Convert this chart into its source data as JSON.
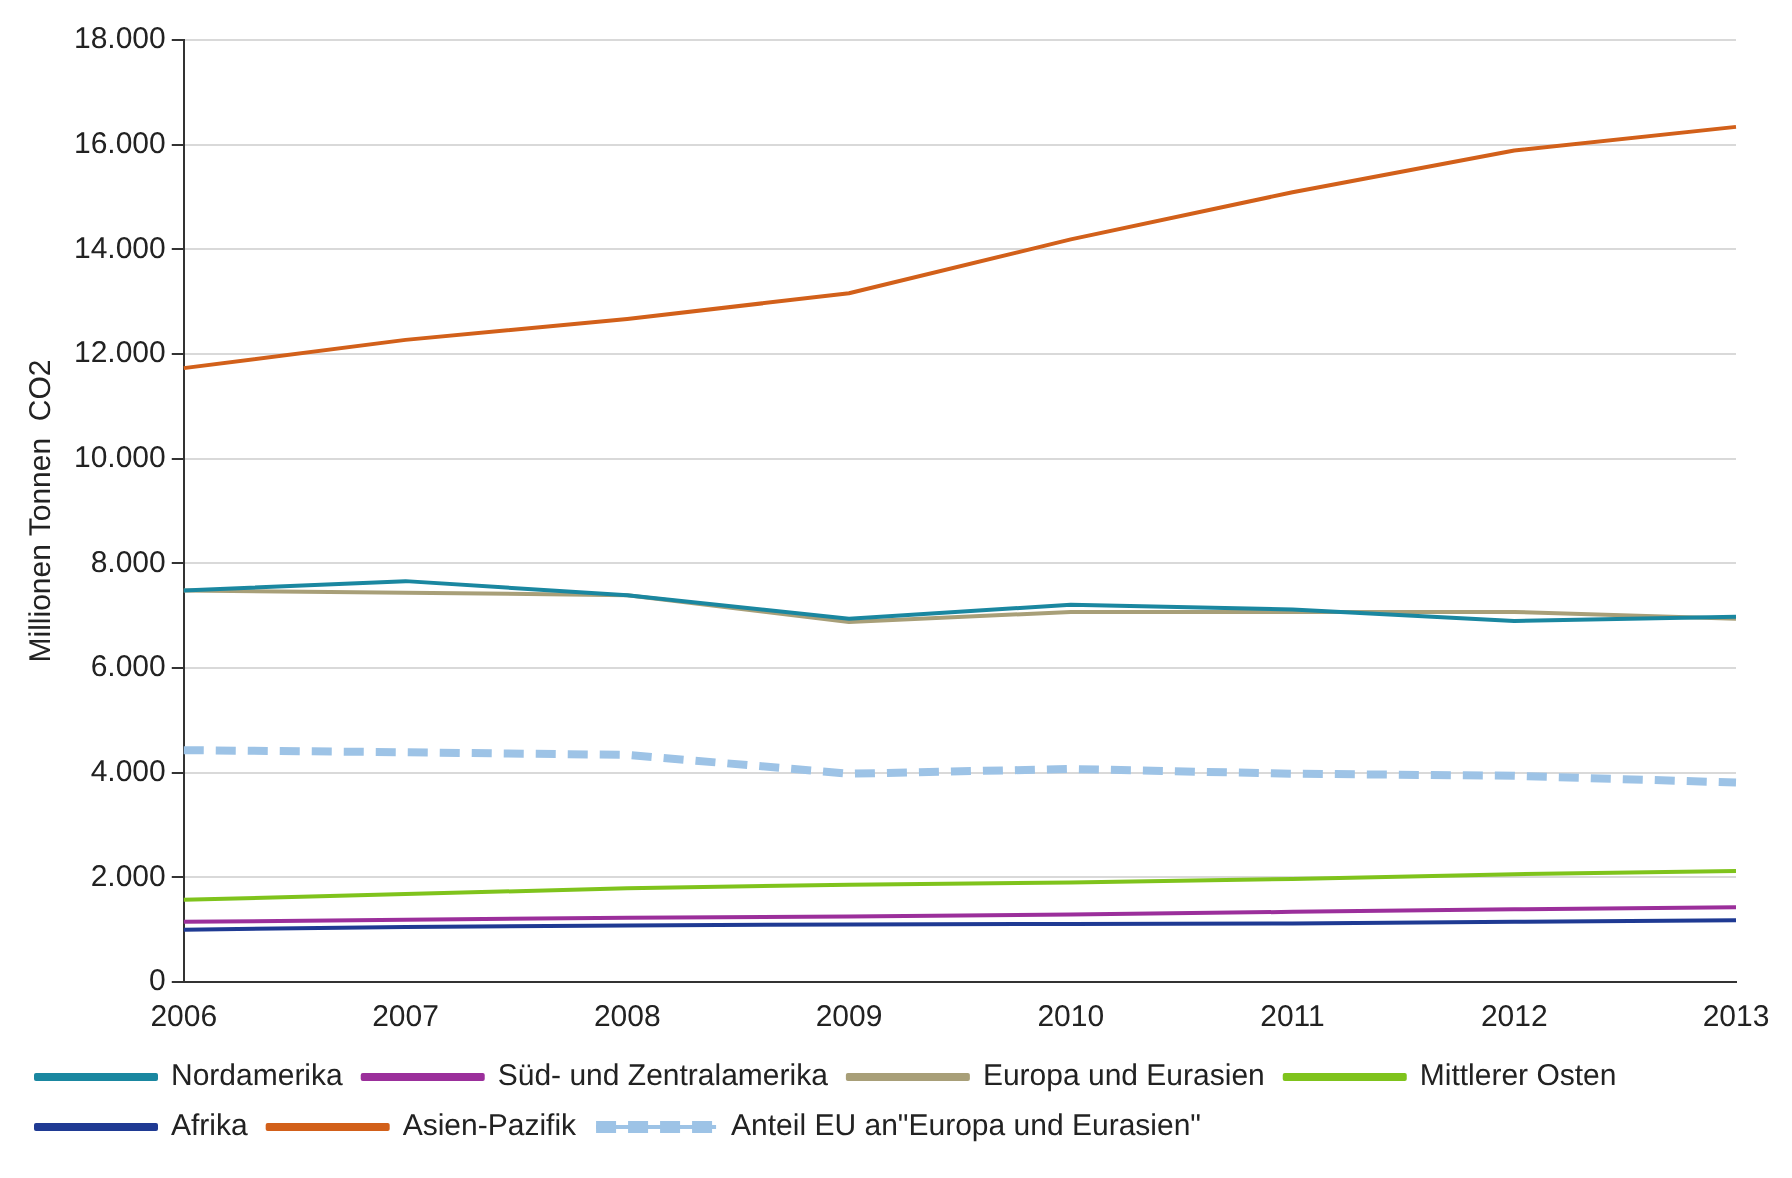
{
  "chart_data": {
    "type": "line",
    "ylabel": "Millionen Tonnen  CO2",
    "categories": [
      "2006",
      "2007",
      "2008",
      "2009",
      "2010",
      "2011",
      "2012",
      "2013"
    ],
    "series": [
      {
        "name": "Nordamerika",
        "color": "#1a87a0",
        "values": [
          7480,
          7660,
          7390,
          6940,
          7210,
          7120,
          6900,
          6980
        ]
      },
      {
        "name": "Süd- und Zentralamerika",
        "color": "#9b2f9b",
        "values": [
          1150,
          1190,
          1230,
          1250,
          1290,
          1340,
          1390,
          1430
        ]
      },
      {
        "name": "Europa und Eurasien",
        "color": "#a89f78",
        "values": [
          7480,
          7440,
          7390,
          6880,
          7070,
          7070,
          7070,
          6940
        ]
      },
      {
        "name": "Mittlerer Osten",
        "color": "#7fc31c",
        "values": [
          1570,
          1680,
          1790,
          1860,
          1900,
          1970,
          2060,
          2120
        ]
      },
      {
        "name": "Afrika",
        "color": "#1f3a93",
        "values": [
          1000,
          1050,
          1080,
          1100,
          1110,
          1120,
          1150,
          1180
        ]
      },
      {
        "name": "Asien-Pazifik",
        "color": "#d2601a",
        "values": [
          11730,
          12270,
          12670,
          13160,
          14190,
          15090,
          15890,
          16340
        ]
      },
      {
        "name": "Anteil EU an\"Europa und Eurasien\"",
        "color": "#9dc3e6",
        "line_style": "dashed",
        "values": [
          4430,
          4390,
          4340,
          3980,
          4070,
          3980,
          3940,
          3810
        ]
      }
    ],
    "ylim": [
      0,
      18000
    ],
    "yticks": [
      {
        "value": 0,
        "label": "0"
      },
      {
        "value": 2000,
        "label": "2.000"
      },
      {
        "value": 4000,
        "label": "4.000"
      },
      {
        "value": 6000,
        "label": "6.000"
      },
      {
        "value": 8000,
        "label": "8.000"
      },
      {
        "value": 10000,
        "label": "10.000"
      },
      {
        "value": 12000,
        "label": "12.000"
      },
      {
        "value": 14000,
        "label": "14.000"
      },
      {
        "value": 16000,
        "label": "16.000"
      },
      {
        "value": 18000,
        "label": "18.000"
      }
    ],
    "grid": "y",
    "legend": "bottom",
    "marker": "none",
    "line_style": "solid"
  }
}
